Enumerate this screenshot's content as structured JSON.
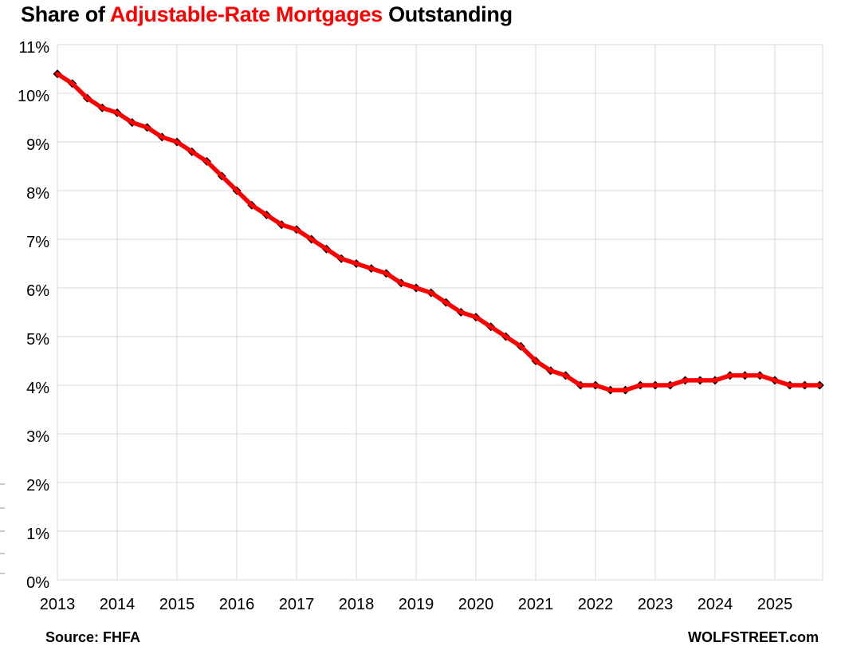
{
  "chart_data": {
    "type": "line",
    "title": "Share of Adjustable-Rate Mortgages Outstanding",
    "title_parts": [
      "Share of ",
      "Adjustable-Rate Mortgages",
      " Outstanding"
    ],
    "title_highlight_color": "#ff0000",
    "x_frequency": "quarterly",
    "x_start": "2013 Q1",
    "x_end": "2025 Q4",
    "x_tick_labels": [
      "2013",
      "2014",
      "2015",
      "2016",
      "2017",
      "2018",
      "2019",
      "2020",
      "2021",
      "2022",
      "2023",
      "2024",
      "2025"
    ],
    "y_tick_labels": [
      "11%",
      "10%",
      "9%",
      "8%",
      "7%",
      "6%",
      "5%",
      "4%",
      "3%",
      "2%",
      "1%",
      "0%"
    ],
    "ylim": [
      0,
      11
    ],
    "y_unit": "%",
    "grid": true,
    "grid_color": "#d9d9d9",
    "legend": "none",
    "series": [
      {
        "name": "Share of adjustable-rate mortgages outstanding",
        "color": "#ff0000",
        "marker": "diamond",
        "marker_color": "#000000",
        "values": [
          10.4,
          10.2,
          9.9,
          9.7,
          9.6,
          9.4,
          9.3,
          9.1,
          9.0,
          8.8,
          8.6,
          8.3,
          8.0,
          7.7,
          7.5,
          7.3,
          7.2,
          7.0,
          6.8,
          6.6,
          6.5,
          6.4,
          6.3,
          6.1,
          6.0,
          5.9,
          5.7,
          5.5,
          5.4,
          5.2,
          5.0,
          4.8,
          4.5,
          4.3,
          4.2,
          4.0,
          4.0,
          3.9,
          3.9,
          4.0,
          4.0,
          4.0,
          4.1,
          4.1,
          4.1,
          4.2,
          4.2,
          4.2,
          4.1,
          4.0,
          4.0,
          4.0
        ]
      }
    ],
    "source_label": "Source: FHFA",
    "watermark": "WOLFSTREET.com"
  }
}
